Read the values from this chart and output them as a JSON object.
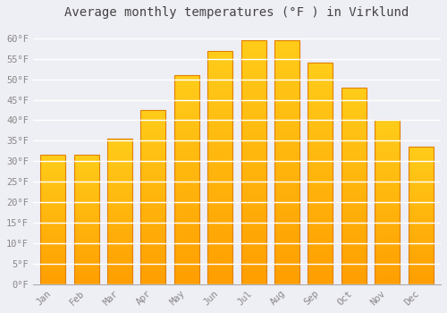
{
  "title": "Average monthly temperatures (°F ) in Virklund",
  "months": [
    "Jan",
    "Feb",
    "Mar",
    "Apr",
    "May",
    "Jun",
    "Jul",
    "Aug",
    "Sep",
    "Oct",
    "Nov",
    "Dec"
  ],
  "values": [
    31.5,
    31.5,
    35.5,
    42.5,
    51.0,
    57.0,
    59.5,
    59.5,
    54.0,
    48.0,
    40.0,
    33.5
  ],
  "bar_color_top": "#FFB300",
  "bar_color_bottom": "#FFA000",
  "bar_color_edge": "#E08000",
  "background_color": "#EEEEF5",
  "plot_bg_color": "#EEEEF5",
  "grid_color": "#FFFFFF",
  "tick_label_color": "#888888",
  "title_color": "#444444",
  "ylim": [
    0,
    63
  ],
  "yticks": [
    0,
    5,
    10,
    15,
    20,
    25,
    30,
    35,
    40,
    45,
    50,
    55,
    60
  ],
  "ytick_labels": [
    "0°F",
    "5°F",
    "10°F",
    "15°F",
    "20°F",
    "25°F",
    "30°F",
    "35°F",
    "40°F",
    "45°F",
    "50°F",
    "55°F",
    "60°F"
  ],
  "title_fontsize": 10,
  "tick_fontsize": 7.5,
  "bar_width": 0.75
}
